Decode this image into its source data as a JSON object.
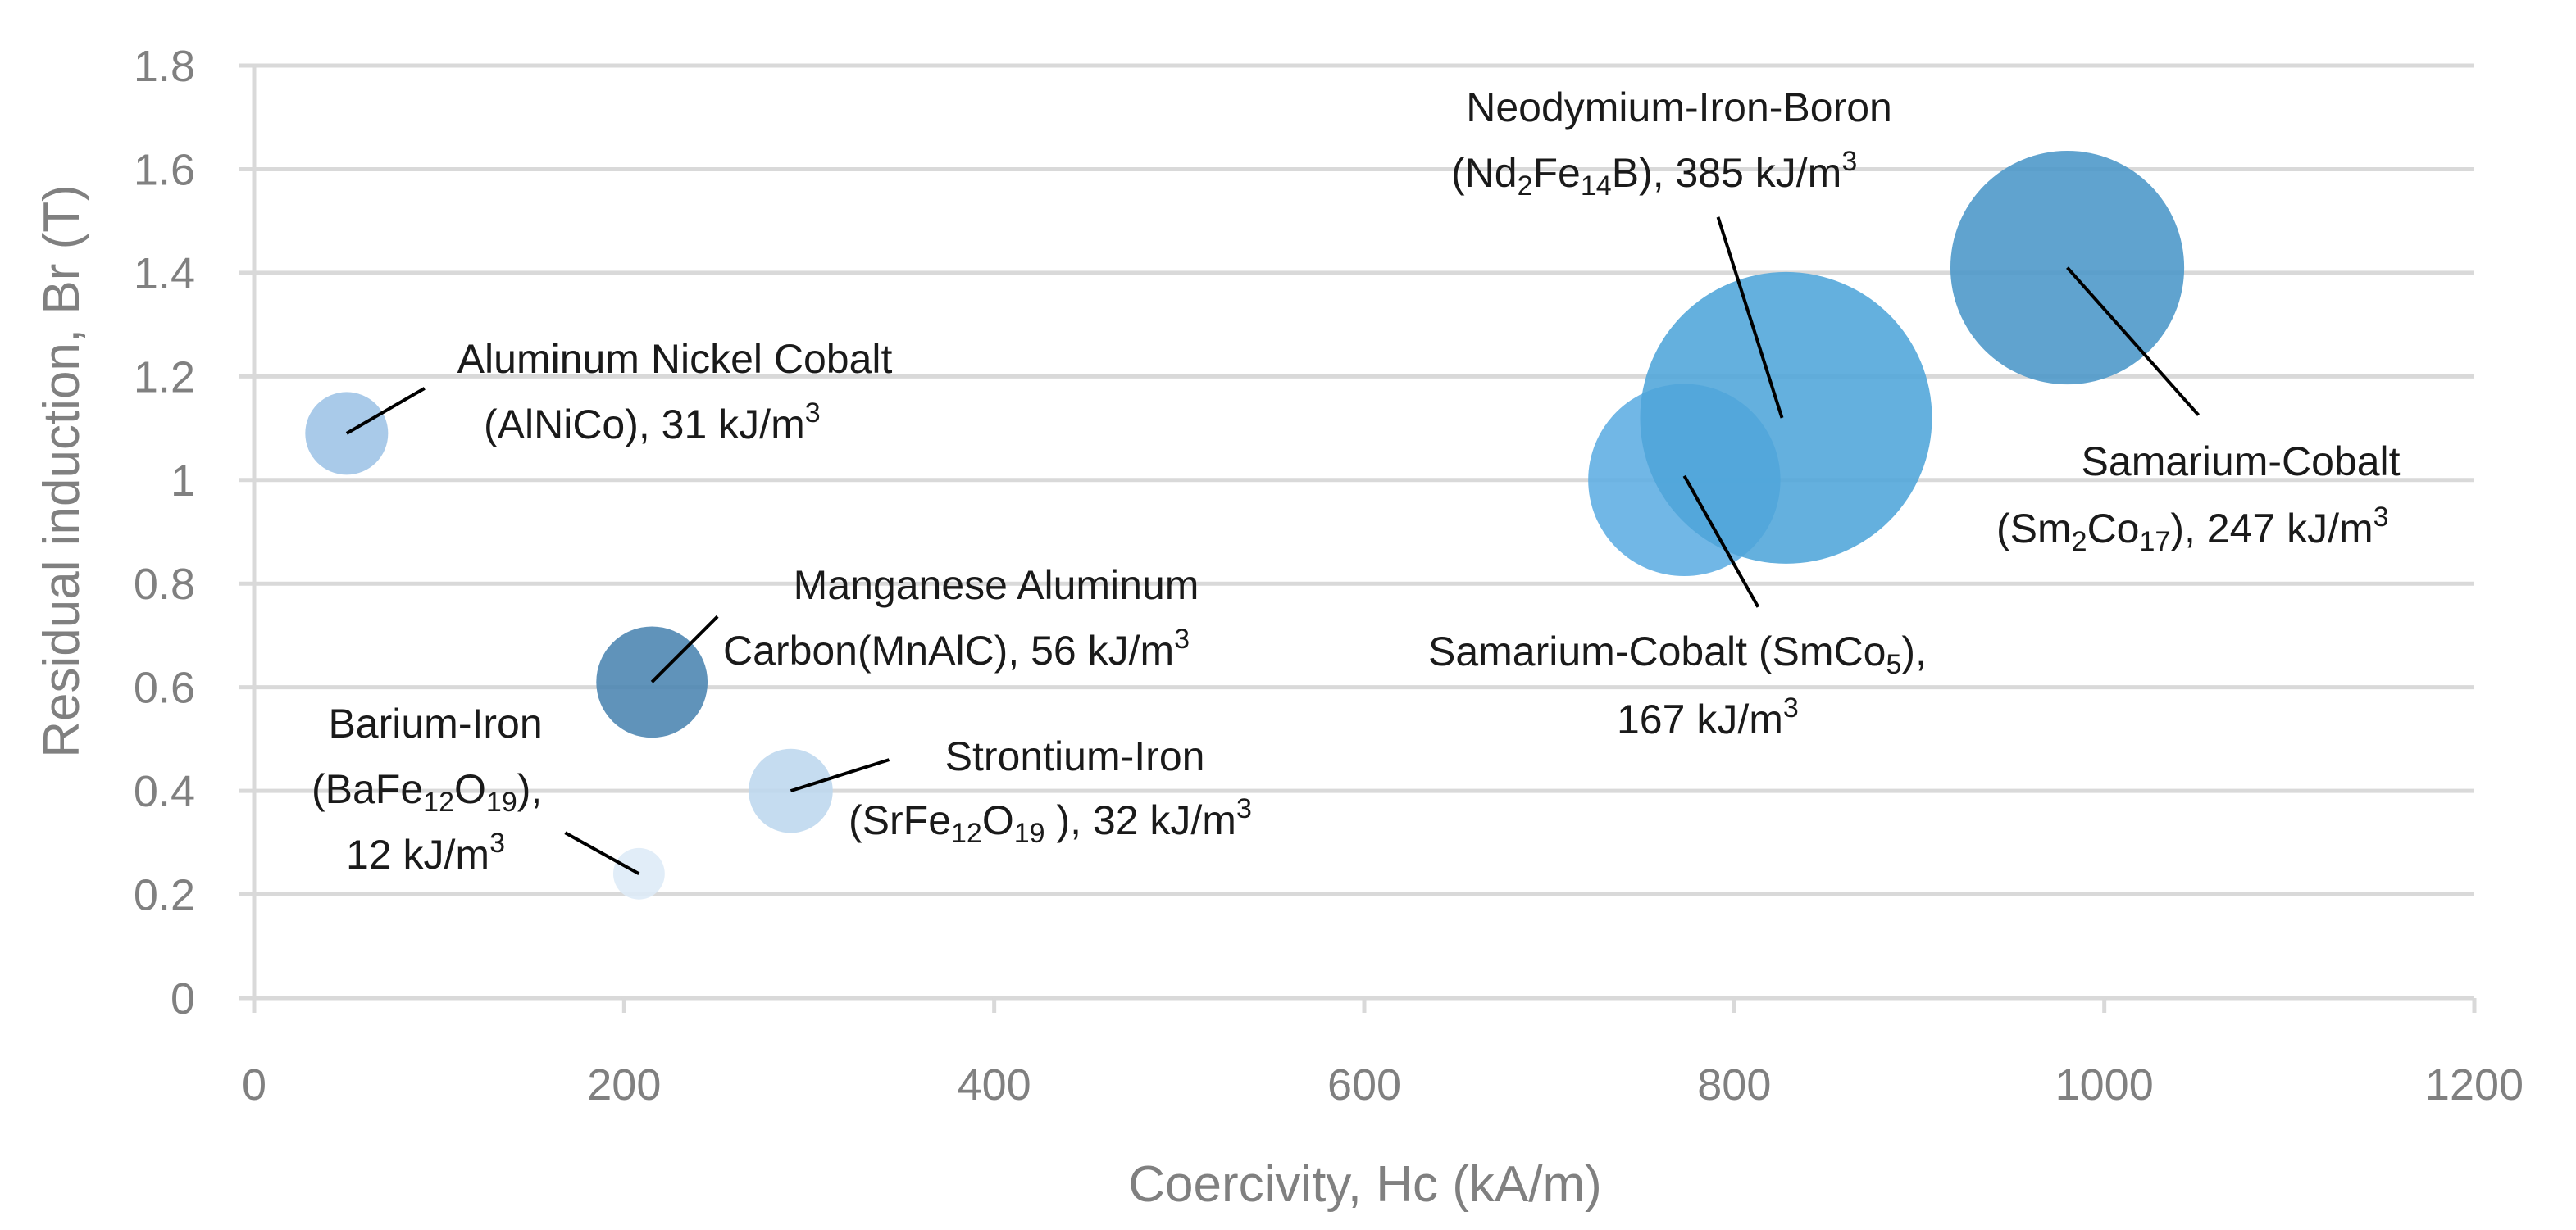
{
  "chart_data": {
    "type": "bubble",
    "title": "",
    "xlabel": "Coercivity, Hc (kA/m)",
    "ylabel": "Residual induction, Br (T)",
    "xlim": [
      0,
      1200
    ],
    "ylim": [
      0,
      1.8
    ],
    "x_ticks": [
      "0",
      "200",
      "400",
      "600",
      "800",
      "1000",
      "1200"
    ],
    "y_ticks": [
      "0",
      "0.2",
      "0.4",
      "0.6",
      "0.8",
      "1",
      "1.2",
      "1.4",
      "1.6",
      "1.8"
    ],
    "grid": true,
    "series": [
      {
        "name": "Aluminum Nickel Cobalt",
        "x": 50,
        "y": 1.09,
        "energy_kJ_m3": 31,
        "color": "#9DC3E6",
        "label": {
          "line1": "Aluminum Nickel Cobalt",
          "l2_a": "(AlNiCo), 31 kJ/m",
          "l2_sup": "3"
        }
      },
      {
        "name": "Manganese Aluminum Carbon",
        "x": 215,
        "y": 0.61,
        "energy_kJ_m3": 56,
        "color": "#4A84B0",
        "label": {
          "line1": "Manganese Aluminum",
          "l2_a": "Carbon(MnAlC), 56 kJ/m",
          "l2_sup": "3"
        }
      },
      {
        "name": "Barium-Iron",
        "x": 208,
        "y": 0.24,
        "energy_kJ_m3": 12,
        "color": "#DDEBF7",
        "label": {
          "line1": "Barium-Iron",
          "l2_a": "(BaFe",
          "l2_sub1": "12",
          "l2_b": "O",
          "l2_sub2": "19",
          "l2_c": "),",
          "l3_a": "12 kJ/m",
          "l3_sup": "3"
        }
      },
      {
        "name": "Strontium-Iron",
        "x": 290,
        "y": 0.4,
        "energy_kJ_m3": 32,
        "color": "#BDD7EE",
        "label": {
          "line1": "Strontium-Iron",
          "l2_a": "(SrFe",
          "l2_sub1": "12",
          "l2_b": "O",
          "l2_sub2": "19",
          "l2_c": " ), 32 kJ/m",
          "l2_sup": "3"
        }
      },
      {
        "name": "Samarium-Cobalt (SmCo5)",
        "x": 773,
        "y": 1.0,
        "energy_kJ_m3": 167,
        "color": "#5DADE2",
        "label": {
          "l1_a": "Samarium-Cobalt (SmCo",
          "l1_sub": "5",
          "l1_b": "),",
          "l2_a": "167 kJ/m",
          "l2_sup": "3"
        }
      },
      {
        "name": "Neodymium-Iron-Boron",
        "x": 828,
        "y": 1.12,
        "energy_kJ_m3": 385,
        "color": "#4EA5D9",
        "label": {
          "line1": "Neodymium-Iron-Boron",
          "l2_a": "(Nd",
          "l2_sub1": "2",
          "l2_b": "Fe",
          "l2_sub2": "14",
          "l2_c": "B), 385 kJ/m",
          "l2_sup": "3"
        }
      },
      {
        "name": "Samarium-Cobalt (Sm2Co17)",
        "x": 980,
        "y": 1.41,
        "energy_kJ_m3": 247,
        "color": "#4A96C8",
        "label": {
          "line1": "Samarium-Cobalt",
          "l2_a": "(Sm",
          "l2_sub1": "2",
          "l2_b": "Co",
          "l2_sub2": "17",
          "l2_c": "), 247 kJ/m",
          "l2_sup": "3"
        }
      }
    ]
  }
}
